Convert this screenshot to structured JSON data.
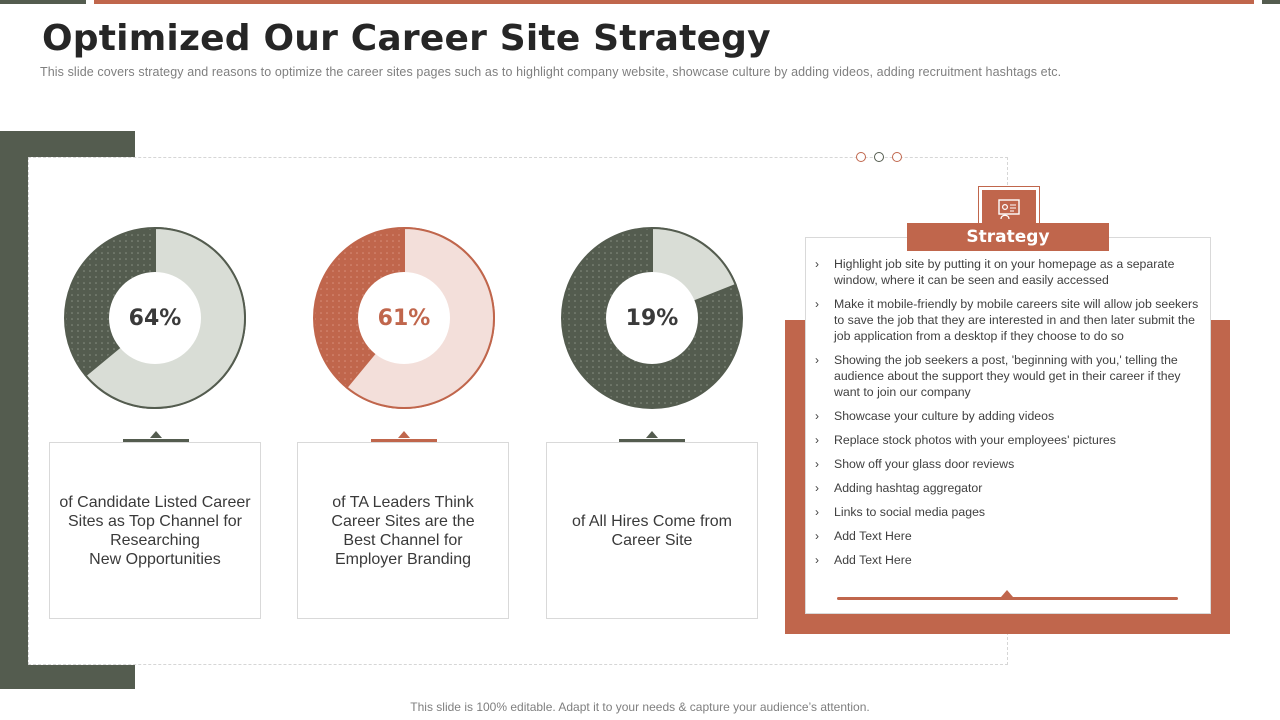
{
  "title": "Optimized Our Career Site Strategy",
  "subtitle": "This slide covers strategy and reasons to optimize the career sites pages such as to highlight company website, showcase culture by adding videos, adding recruitment hashtags etc.",
  "colors": {
    "accent": "#c0664c",
    "dark": "#545c4f",
    "light_grey": "#d9ddd6",
    "light_pink": "#f3dfda"
  },
  "stats": [
    {
      "percent_label": "64%",
      "value": 64,
      "description": "of Candidate Listed Career\nSites as Top Channel for\nResearching\nNew Opportunities"
    },
    {
      "percent_label": "61%",
      "value": 61,
      "description": "of TA Leaders Think\nCareer Sites are the\nBest Channel for\nEmployer Branding"
    },
    {
      "percent_label": "19%",
      "value": 19,
      "description": "of All Hires Come from\nCareer Site"
    }
  ],
  "strategy": {
    "icon": "person-board-icon",
    "header": "Strategy",
    "items": [
      "Highlight job site by putting it on your homepage as a separate window,  where it can be seen and easily accessed",
      "Make it mobile-friendly  by mobile careers site will allow job seekers to save the job that they are interested in and then later submit the job application from a desktop if they choose to do so",
      "Showing the job seekers a post, 'beginning  with you,' telling the audience about the support they would get in their career if they want to join our company",
      "Showcase your culture by adding videos",
      "Replace stock photos with your employees' pictures",
      "Show off your glass door reviews",
      "Adding hashtag aggregator",
      "Links to social media pages",
      "Add Text Here",
      "Add Text Here"
    ]
  },
  "footer": "This slide is 100% editable. Adapt it to your needs & capture your audience’s attention."
}
